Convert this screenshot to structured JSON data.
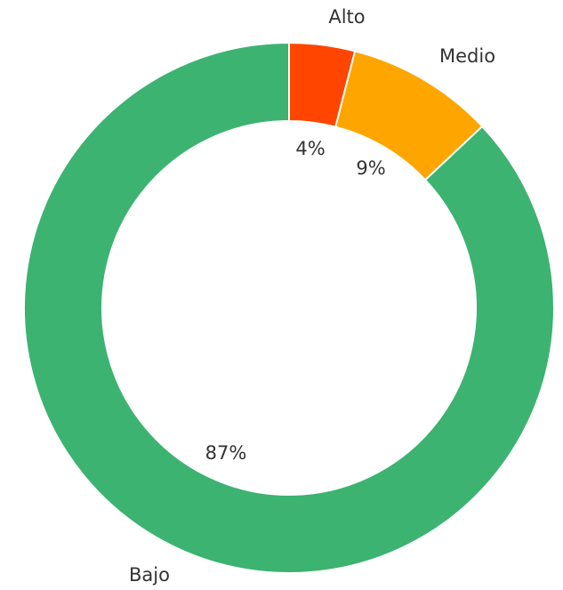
{
  "chart_data": {
    "type": "pie",
    "donut": true,
    "categories": [
      "Alto",
      "Medio",
      "Bajo"
    ],
    "values": [
      4,
      9,
      87
    ],
    "value_labels": [
      "4%",
      "9%",
      "87%"
    ],
    "colors": [
      "#ff4500",
      "#ffa500",
      "#3cb371"
    ],
    "start_angle_deg": 0,
    "direction": "clockwise",
    "title": "",
    "legend": "none"
  }
}
